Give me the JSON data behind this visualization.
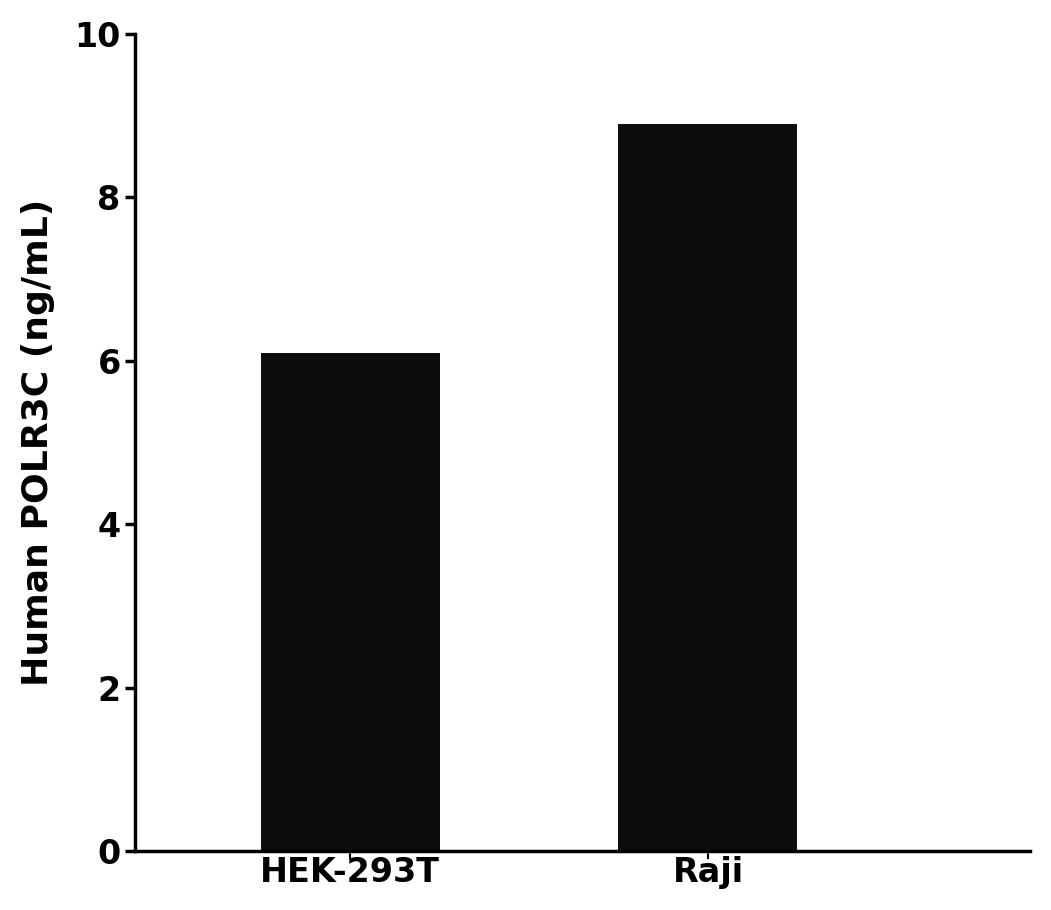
{
  "categories": [
    "HEK-293T",
    "Raji"
  ],
  "values": [
    6.1,
    8.9
  ],
  "bar_color": "#0d0d0d",
  "ylabel": "Human POLR3C (ng/mL)",
  "ylim": [
    0,
    10
  ],
  "yticks": [
    0,
    2,
    4,
    6,
    8,
    10
  ],
  "bar_width": 0.5,
  "ylabel_fontsize": 26,
  "tick_fontsize": 24,
  "tick_label_fontweight": "bold",
  "axis_label_fontweight": "bold",
  "background_color": "#ffffff",
  "spine_linewidth": 2.5
}
